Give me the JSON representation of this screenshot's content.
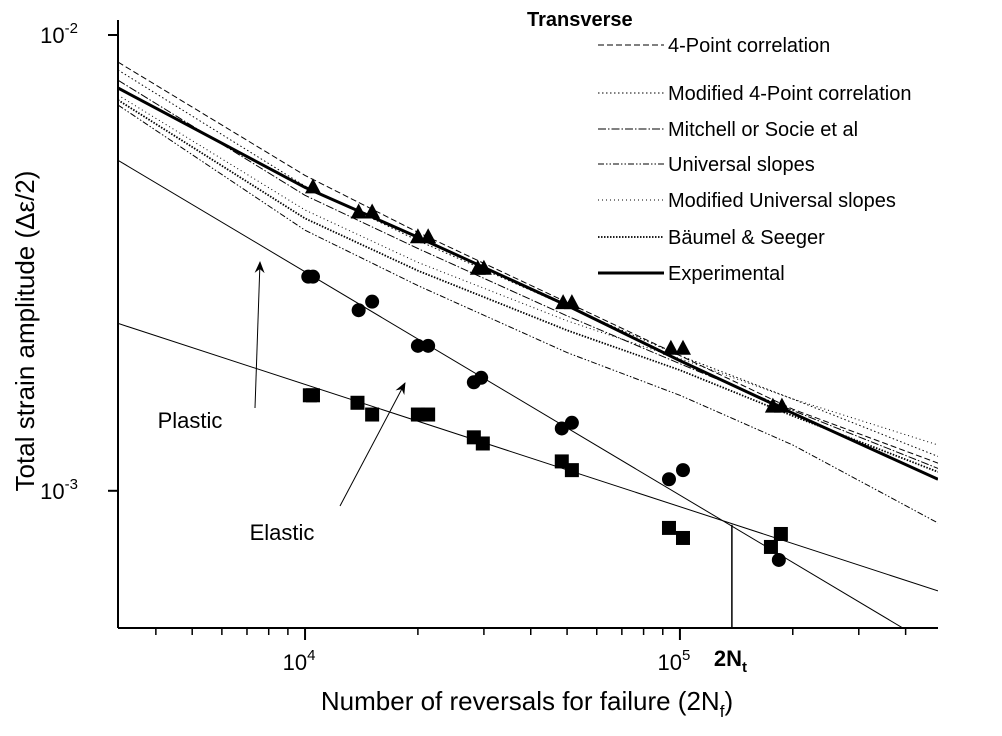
{
  "chart_data": {
    "type": "line",
    "xlabel": {
      "text": "Number of reversals for failure (2N",
      "sub": "f",
      "tail": ")"
    },
    "ylabel": "Total strain amplitude (Δε/2)",
    "log_x": true,
    "log_y": true,
    "xlim": [
      3170,
      488000
    ],
    "ylim": [
      0.0005,
      0.01
    ],
    "xticks": [
      {
        "value": 10000,
        "label": "10",
        "exponent": "4"
      },
      {
        "value": 100000,
        "label": "10",
        "exponent": "5"
      }
    ],
    "xminor_ticks": [
      4000,
      5000,
      6000,
      7000,
      8000,
      9000,
      20000,
      30000,
      40000,
      50000,
      60000,
      70000,
      80000,
      90000,
      200000,
      300000,
      400000
    ],
    "yticks": [
      {
        "value": 0.001,
        "label": "10",
        "exponent": "-3"
      },
      {
        "value": 0.01,
        "label": "10",
        "exponent": "-2"
      }
    ],
    "legend_title": "Transverse",
    "legend_position": "upper right",
    "x": [
      3170,
      10000,
      20000,
      50000,
      100000,
      200000,
      488000
    ],
    "series": [
      {
        "name": "4-Point correlation",
        "color": "#000000",
        "style": "dashed",
        "values": [
          0.00872,
          0.00492,
          0.00369,
          0.00259,
          0.00198,
          0.00151,
          0.00115
        ]
      },
      {
        "name": "Modified 4-Point correlation",
        "color": "#000000",
        "style": "dotted",
        "values": [
          0.00838,
          0.00466,
          0.00354,
          0.00254,
          0.00198,
          0.00159,
          0.00119
        ]
      },
      {
        "name": "Mitchell or Socie et al",
        "color": "#000000",
        "style": "dashdot",
        "values": [
          0.00796,
          0.00445,
          0.0034,
          0.00242,
          0.0019,
          0.0015,
          0.00112
        ]
      },
      {
        "name": "Universal slopes",
        "color": "#000000",
        "style": "dashdotdot",
        "values": [
          0.00702,
          0.00373,
          0.00282,
          0.00201,
          0.00162,
          0.00126,
          0.00085
        ]
      },
      {
        "name": "Modified Universal slopes",
        "color": "#000000",
        "style": "sparse-dotted",
        "values": [
          0.00738,
          0.00413,
          0.00317,
          0.00236,
          0.00195,
          0.00159,
          0.00126
        ]
      },
      {
        "name": "Bäumel & Seeger",
        "color": "#000000",
        "style": "dense-dotted",
        "values": [
          0.0072,
          0.00396,
          0.00304,
          0.00225,
          0.00184,
          0.00146,
          0.0011
        ]
      },
      {
        "name": "Experimental",
        "color": "#000000",
        "style": "solid-thick",
        "values": [
          0.00765,
          0.00463,
          0.0036,
          0.00255,
          0.00193,
          0.00148,
          0.00106
        ]
      }
    ],
    "points": [
      {
        "marker": "triangle",
        "color": "#000000",
        "x": [
          10500,
          13900,
          15100,
          20000,
          21300,
          28900,
          30000,
          48800,
          51500,
          94600,
          101900,
          177000,
          187100
        ],
        "values": [
          0.00463,
          0.00408,
          0.00408,
          0.0036,
          0.0036,
          0.00307,
          0.00307,
          0.00258,
          0.00258,
          0.00205,
          0.00205,
          0.00153,
          0.00153
        ]
      },
      {
        "marker": "circle",
        "color": "#000000",
        "x": [
          10200,
          10500,
          13900,
          15100,
          20000,
          21300,
          28200,
          29500,
          48400,
          51500,
          93500,
          101900,
          183600
        ],
        "values": [
          0.00295,
          0.00295,
          0.00249,
          0.0026,
          0.00208,
          0.00208,
          0.00173,
          0.00177,
          0.00137,
          0.00141,
          0.00106,
          0.00111,
          0.000705
        ]
      },
      {
        "marker": "square",
        "color": "#000000",
        "x": [
          10300,
          10500,
          13800,
          15100,
          20000,
          21300,
          28200,
          29800,
          48400,
          51500,
          93500,
          101900,
          174900,
          185900
        ],
        "values": [
          0.00162,
          0.00162,
          0.00156,
          0.00147,
          0.00147,
          0.00147,
          0.00131,
          0.00127,
          0.00116,
          0.00111,
          0.000829,
          0.000788,
          0.000753,
          0.000804
        ]
      }
    ],
    "fit_lines": [
      {
        "x": [
          3170,
          398000
        ],
        "values": [
          0.00531,
          0.000497
        ]
      },
      {
        "x": [
          3170,
          488000
        ],
        "values": [
          0.00233,
          0.000603
        ]
      }
    ],
    "transition": {
      "x": 137600,
      "y": 0.000842,
      "label": "2N",
      "sub": "t"
    },
    "annotations": [
      {
        "text": "Plastic"
      },
      {
        "text": "Elastic"
      }
    ]
  }
}
